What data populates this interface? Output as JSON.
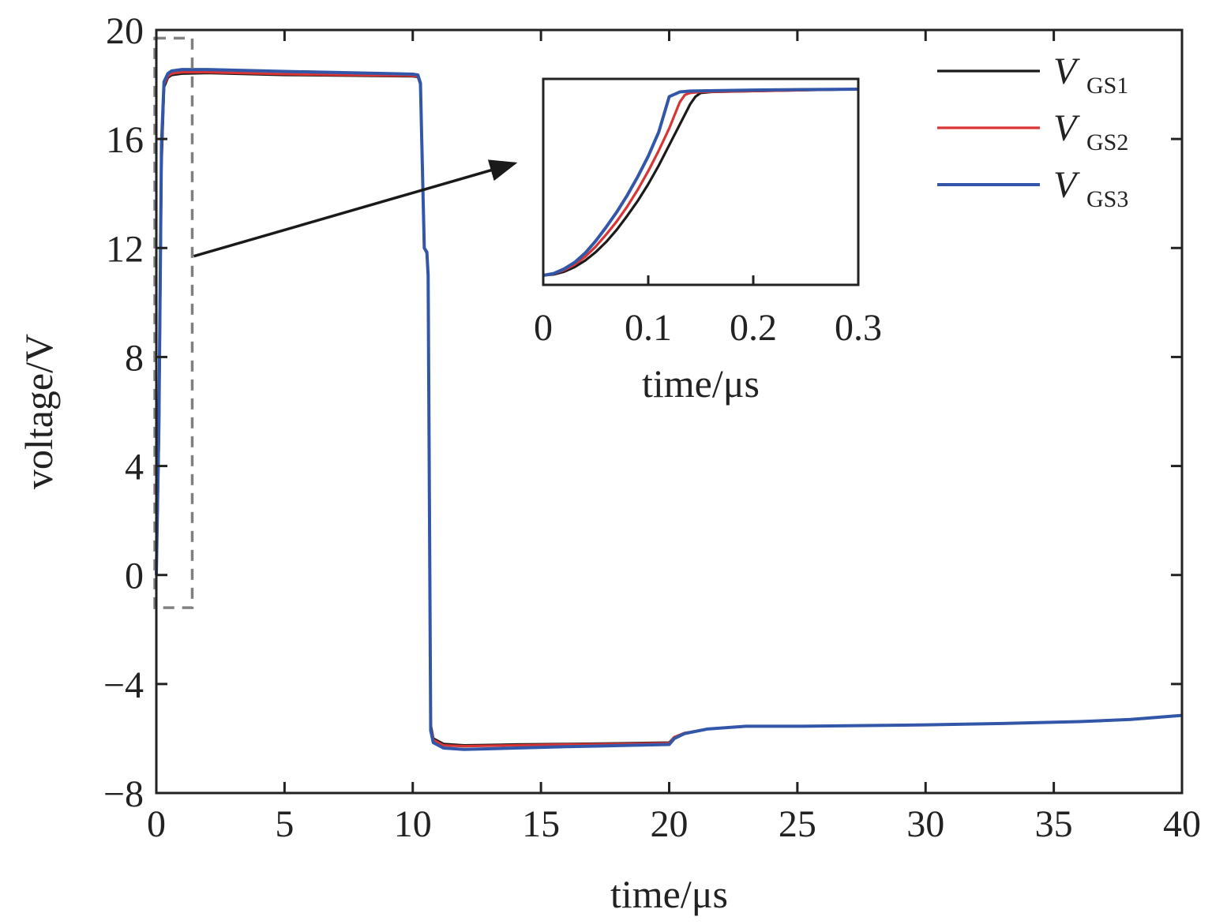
{
  "chart_data": [
    {
      "id": "main",
      "type": "line",
      "title": "",
      "xlabel": "time/μs",
      "ylabel": "voltage/V",
      "xlim": [
        0,
        40
      ],
      "ylim": [
        -8,
        20
      ],
      "xticks": [
        0,
        5,
        10,
        15,
        20,
        25,
        30,
        35,
        40
      ],
      "yticks": [
        -8,
        -4,
        0,
        4,
        8,
        12,
        16,
        20
      ],
      "xtick_labels": [
        "0",
        "5",
        "10",
        "15",
        "20",
        "25",
        "30",
        "35",
        "40"
      ],
      "ytick_labels": [
        "−8",
        "−4",
        "0",
        "4",
        "8",
        "12",
        "16",
        "20"
      ],
      "grid": false,
      "legend_position": "top-right",
      "series": [
        {
          "name": "V_GS1",
          "legend_main": "V",
          "legend_sub": "GS1",
          "color": "#1a1a1a",
          "x": [
            0,
            0.1,
            0.2,
            0.3,
            0.45,
            0.6,
            1.0,
            2.0,
            5.0,
            10.0,
            10.2,
            10.3,
            10.35,
            10.45,
            10.55,
            10.6,
            10.7,
            10.8,
            11.2,
            12.0,
            14.0,
            16.0,
            18.0,
            20.0,
            20.2,
            20.6,
            21.5,
            23.0,
            25.0,
            28.0,
            30.0,
            33.0,
            36.0,
            38.0,
            40.0
          ],
          "values": [
            0,
            5.0,
            15.0,
            17.9,
            18.25,
            18.35,
            18.4,
            18.42,
            18.35,
            18.3,
            18.28,
            18.0,
            16.0,
            12.0,
            11.8,
            11.0,
            -5.5,
            -6.0,
            -6.2,
            -6.25,
            -6.22,
            -6.2,
            -6.18,
            -6.15,
            -5.95,
            -5.8,
            -5.65,
            -5.55,
            -5.55,
            -5.52,
            -5.5,
            -5.45,
            -5.38,
            -5.3,
            -5.15
          ]
        },
        {
          "name": "V_GS2",
          "legend_main": "V",
          "legend_sub": "GS2",
          "color": "#d93535",
          "x": [
            0,
            0.1,
            0.2,
            0.3,
            0.45,
            0.6,
            1.0,
            2.0,
            5.0,
            10.0,
            10.2,
            10.3,
            10.35,
            10.45,
            10.55,
            10.6,
            10.7,
            10.8,
            11.2,
            12.0,
            14.0,
            16.0,
            18.0,
            20.0,
            20.2,
            20.6,
            21.5,
            23.0,
            25.0,
            28.0,
            30.0,
            33.0,
            36.0,
            38.0,
            40.0
          ],
          "values": [
            0,
            5.2,
            15.3,
            18.0,
            18.3,
            18.4,
            18.45,
            18.45,
            18.38,
            18.32,
            18.3,
            18.0,
            16.0,
            12.0,
            11.8,
            11.0,
            -5.6,
            -6.05,
            -6.25,
            -6.28,
            -6.25,
            -6.22,
            -6.2,
            -6.17,
            -5.95,
            -5.8,
            -5.65,
            -5.55,
            -5.55,
            -5.52,
            -5.5,
            -5.45,
            -5.38,
            -5.3,
            -5.15
          ]
        },
        {
          "name": "V_GS3",
          "legend_main": "V",
          "legend_sub": "GS3",
          "color": "#3357a8",
          "x": [
            0,
            0.1,
            0.2,
            0.3,
            0.45,
            0.6,
            1.0,
            2.0,
            5.0,
            10.0,
            10.2,
            10.3,
            10.35,
            10.45,
            10.55,
            10.6,
            10.7,
            10.8,
            11.2,
            12.0,
            14.0,
            16.0,
            18.0,
            20.0,
            20.2,
            20.6,
            21.5,
            23.0,
            25.0,
            28.0,
            30.0,
            33.0,
            36.0,
            38.0,
            40.0
          ],
          "values": [
            0,
            5.5,
            15.8,
            18.1,
            18.4,
            18.5,
            18.55,
            18.55,
            18.48,
            18.38,
            18.35,
            18.05,
            16.0,
            12.0,
            11.85,
            11.0,
            -5.7,
            -6.15,
            -6.35,
            -6.4,
            -6.35,
            -6.3,
            -6.26,
            -6.22,
            -6.0,
            -5.82,
            -5.65,
            -5.55,
            -5.55,
            -5.52,
            -5.5,
            -5.45,
            -5.38,
            -5.3,
            -5.15
          ]
        }
      ],
      "annotations": [
        {
          "type": "dashed-rectangle",
          "color": "#808080",
          "x_range": [
            0,
            1.4
          ],
          "y_range": [
            -1.2,
            19.7
          ]
        },
        {
          "type": "arrow",
          "from": [
            1.4,
            11.7
          ],
          "to": "inset"
        }
      ]
    },
    {
      "id": "inset",
      "type": "line",
      "title": "",
      "xlabel": "time/μs",
      "ylabel": "",
      "xlim": [
        0,
        0.3
      ],
      "ylim": [
        0,
        1.0
      ],
      "xticks": [
        0,
        0.1,
        0.2,
        0.3
      ],
      "xtick_labels": [
        "0",
        "0.1",
        "0.2",
        "0.3"
      ],
      "grid": false,
      "series": [
        {
          "name": "V_GS1",
          "color": "#1a1a1a",
          "x": [
            0,
            0.01,
            0.02,
            0.03,
            0.04,
            0.05,
            0.06,
            0.07,
            0.08,
            0.09,
            0.1,
            0.11,
            0.12,
            0.13,
            0.14,
            0.145,
            0.15,
            0.16,
            0.2,
            0.25,
            0.3
          ],
          "values": [
            0.0,
            0.005,
            0.02,
            0.045,
            0.08,
            0.125,
            0.18,
            0.245,
            0.32,
            0.4,
            0.49,
            0.59,
            0.7,
            0.81,
            0.92,
            0.96,
            0.98,
            0.985,
            0.99,
            0.995,
            1.0
          ]
        },
        {
          "name": "V_GS2",
          "color": "#d93535",
          "x": [
            0,
            0.01,
            0.02,
            0.03,
            0.04,
            0.05,
            0.06,
            0.07,
            0.08,
            0.09,
            0.1,
            0.11,
            0.12,
            0.13,
            0.135,
            0.14,
            0.15,
            0.2,
            0.25,
            0.3
          ],
          "values": [
            0.0,
            0.008,
            0.028,
            0.058,
            0.1,
            0.155,
            0.22,
            0.29,
            0.37,
            0.46,
            0.56,
            0.67,
            0.79,
            0.93,
            0.97,
            0.98,
            0.985,
            0.99,
            0.995,
            1.0
          ]
        },
        {
          "name": "V_GS3",
          "color": "#3357a8",
          "x": [
            0,
            0.01,
            0.02,
            0.03,
            0.04,
            0.05,
            0.06,
            0.07,
            0.08,
            0.09,
            0.1,
            0.11,
            0.12,
            0.13,
            0.14,
            0.2,
            0.25,
            0.3
          ],
          "values": [
            0.0,
            0.01,
            0.035,
            0.07,
            0.12,
            0.185,
            0.26,
            0.34,
            0.43,
            0.53,
            0.64,
            0.77,
            0.96,
            0.985,
            0.99,
            0.995,
            0.998,
            1.0
          ]
        }
      ]
    }
  ]
}
